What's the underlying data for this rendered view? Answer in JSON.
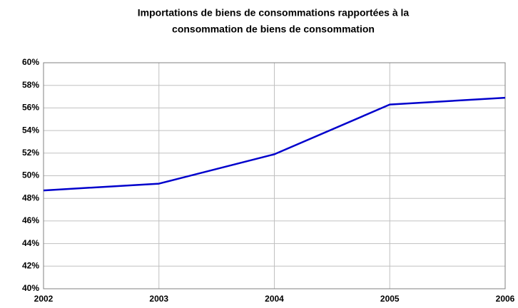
{
  "chart_data": {
    "type": "line",
    "title": [
      "Importations de biens de consommations rapportées à la",
      "consommation de biens de consommation"
    ],
    "x": [
      2002,
      2003,
      2004,
      2005,
      2006
    ],
    "xlim": [
      2002,
      2006
    ],
    "xticks": [
      2002,
      2003,
      2004,
      2005,
      2006
    ],
    "series": [
      {
        "color": "#0000cc",
        "values": [
          48.7,
          49.3,
          51.9,
          56.3,
          56.9
        ]
      }
    ],
    "ylim": [
      40,
      60
    ],
    "yticks": [
      {
        "value": 40,
        "label": "40%"
      },
      {
        "value": 42,
        "label": "42%"
      },
      {
        "value": 44,
        "label": "44%"
      },
      {
        "value": 46,
        "label": "46%"
      },
      {
        "value": 48,
        "label": "48%"
      },
      {
        "value": 50,
        "label": "50%"
      },
      {
        "value": 52,
        "label": "52%"
      },
      {
        "value": 54,
        "label": "54%"
      },
      {
        "value": 56,
        "label": "56%"
      },
      {
        "value": 58,
        "label": "58%"
      },
      {
        "value": 60,
        "label": "60%"
      }
    ],
    "grid": true
  }
}
